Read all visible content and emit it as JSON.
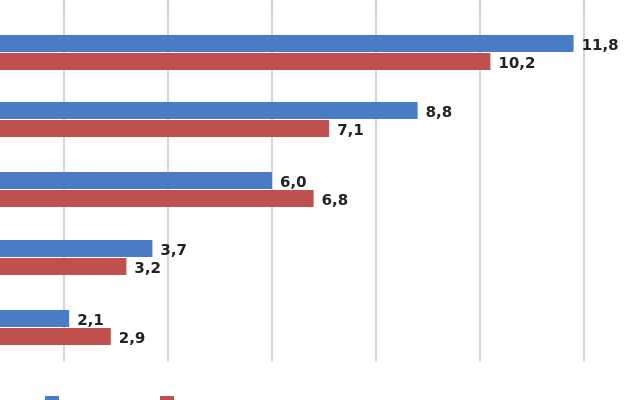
{
  "chart_data": {
    "type": "bar",
    "orientation": "horizontal",
    "title": "",
    "xlabel": "",
    "ylabel": "",
    "categories": [
      "",
      "",
      "",
      "",
      ""
    ],
    "xlim": [
      0,
      12
    ],
    "gridlines": true,
    "legend_position": "bottom",
    "series": [
      {
        "color": "#4a7cc6",
        "values": [
          11.8,
          8.8,
          6.0,
          3.7,
          2.1
        ],
        "labels": [
          "11,8",
          "8,8",
          "6,0",
          "3,7",
          "2,1"
        ]
      },
      {
        "color": "#c0504d",
        "values": [
          10.2,
          7.1,
          6.8,
          3.2,
          2.9
        ],
        "labels": [
          "10,2",
          "7,1",
          "6,8",
          "3,2",
          "2,9"
        ]
      }
    ]
  }
}
